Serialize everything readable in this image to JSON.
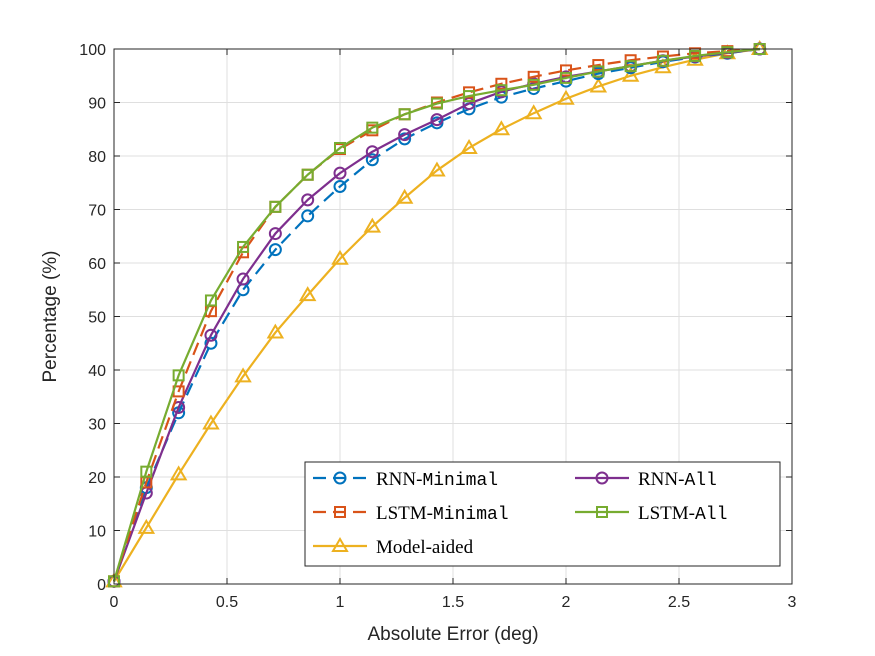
{
  "chart_data": {
    "type": "line",
    "title": "",
    "xlabel": "Absolute Error (deg)",
    "ylabel": "Percentage (%)",
    "xlim": [
      0,
      3
    ],
    "ylim": [
      0,
      100
    ],
    "xticks": [
      0,
      0.5,
      1,
      1.5,
      2,
      2.5,
      3
    ],
    "yticks": [
      0,
      10,
      20,
      30,
      40,
      50,
      60,
      70,
      80,
      90,
      100
    ],
    "xtick_labels": [
      "0",
      "0.5",
      "1",
      "1.5",
      "2",
      "2.5",
      "3"
    ],
    "ytick_labels": [
      "0",
      "10",
      "20",
      "30",
      "40",
      "50",
      "60",
      "70",
      "80",
      "90",
      "100"
    ],
    "grid": true,
    "legend_position": "bottom-right",
    "x": [
      0,
      0.143,
      0.286,
      0.429,
      0.571,
      0.714,
      0.857,
      1.0,
      1.143,
      1.286,
      1.429,
      1.571,
      1.714,
      1.857,
      2.0,
      2.143,
      2.286,
      2.429,
      2.571,
      2.714,
      2.857
    ],
    "series": [
      {
        "name": "RNN-Minimal",
        "name_prefix": "RNN-",
        "name_mono": "Minimal",
        "color": "#0072BD",
        "line_style": "dashed",
        "marker": "circle",
        "values": [
          0.5,
          18,
          32,
          45,
          55,
          62.5,
          68.8,
          74.3,
          79.3,
          83.2,
          86.2,
          88.8,
          91,
          92.6,
          94,
          95.4,
          96.5,
          97.6,
          98.5,
          99.2,
          100
        ]
      },
      {
        "name": "LSTM-Minimal",
        "name_prefix": "LSTM-",
        "name_mono": "Minimal",
        "color": "#D95319",
        "line_style": "dashed",
        "marker": "square",
        "values": [
          0.5,
          19,
          36,
          51,
          62,
          70.5,
          76.5,
          81.3,
          84.8,
          87.8,
          90,
          91.9,
          93.5,
          94.8,
          96,
          97,
          97.9,
          98.6,
          99.2,
          99.6,
          100
        ]
      },
      {
        "name": "Model-aided",
        "name_prefix": "Model-aided",
        "name_mono": "",
        "color": "#EDB120",
        "line_style": "solid",
        "marker": "triangle",
        "values": [
          0.5,
          10.5,
          20.5,
          30,
          38.8,
          47,
          54,
          60.8,
          66.8,
          72.2,
          77.3,
          81.5,
          85,
          88,
          90.7,
          93,
          95,
          96.6,
          98,
          99.2,
          100
        ]
      },
      {
        "name": "RNN-All",
        "name_prefix": "RNN-",
        "name_mono": "All",
        "color": "#7E2F8E",
        "line_style": "solid",
        "marker": "circle",
        "values": [
          0.5,
          17,
          33,
          46.5,
          57,
          65.5,
          71.8,
          76.8,
          80.8,
          84,
          86.8,
          89.8,
          92,
          93.5,
          94.8,
          95.8,
          96.8,
          97.8,
          98.6,
          99.3,
          100
        ]
      },
      {
        "name": "LSTM-All",
        "name_prefix": "LSTM-",
        "name_mono": "All",
        "color": "#77AC30",
        "line_style": "solid",
        "marker": "square",
        "values": [
          0.5,
          21,
          39,
          53,
          63,
          70.5,
          76.5,
          81.5,
          85.3,
          87.8,
          89.8,
          91.2,
          92.3,
          93.3,
          94.6,
          95.8,
          96.8,
          97.8,
          98.7,
          99.4,
          100
        ]
      }
    ],
    "legend_order": [
      0,
      3,
      1,
      4,
      2
    ]
  }
}
